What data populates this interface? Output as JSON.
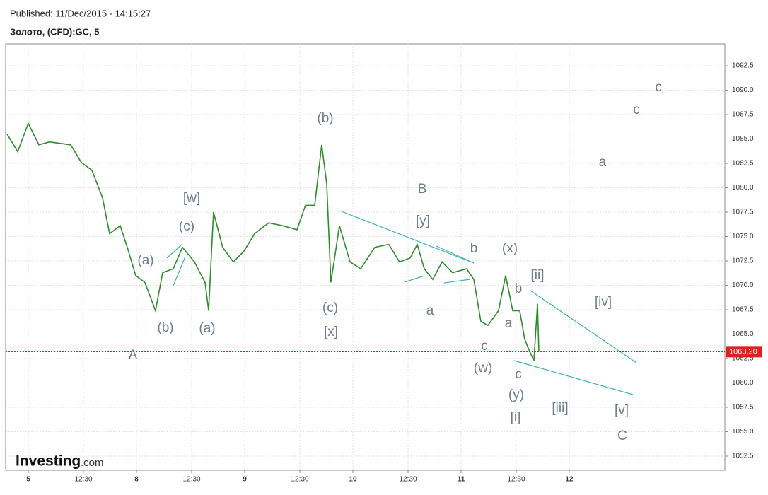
{
  "header": {
    "published": "Published: 11/Dec/2015 - 14:15:27",
    "instrument": "Золото, (CFD):GC, 5"
  },
  "logo": {
    "brand": "Investing",
    "suffix": ".com"
  },
  "chart_data": {
    "type": "line",
    "color": "#2e8b2e",
    "x": [
      -0.196,
      -0.098,
      0,
      0.098,
      0.196,
      0.392,
      0.49,
      0.588,
      0.686,
      0.752,
      0.85,
      0.915,
      0.993,
      1.078,
      1.176,
      1.242,
      1.34,
      1.425,
      1.536,
      1.634,
      1.667,
      1.712,
      1.797,
      1.895,
      1.993,
      2.092,
      2.222,
      2.353,
      2.484,
      2.562,
      2.647,
      2.712,
      2.758,
      2.797,
      2.876,
      2.974,
      3.072,
      3.203,
      3.333,
      3.431,
      3.529,
      3.595,
      3.66,
      3.739,
      3.824,
      3.922,
      4.052,
      4.118,
      4.183,
      4.248,
      4.346,
      4.412,
      4.477,
      4.542,
      4.588,
      4.627,
      4.673,
      4.706,
      4.719
    ],
    "values": [
      1085.5,
      1083.7,
      1086.6,
      1084.4,
      1084.7,
      1084.4,
      1082.6,
      1081.8,
      1079.0,
      1075.3,
      1076.1,
      1073.9,
      1071.0,
      1070.3,
      1067.4,
      1071.3,
      1071.7,
      1073.9,
      1072.4,
      1070.3,
      1067.4,
      1077.5,
      1073.9,
      1072.4,
      1073.5,
      1075.3,
      1076.4,
      1076.1,
      1075.7,
      1078.2,
      1078.2,
      1084.4,
      1080.4,
      1070.3,
      1076.1,
      1072.4,
      1071.7,
      1073.9,
      1074.2,
      1072.4,
      1072.8,
      1074.2,
      1071.7,
      1070.6,
      1072.4,
      1071.3,
      1071.7,
      1070.6,
      1066.3,
      1065.9,
      1067.4,
      1071.0,
      1067.4,
      1067.4,
      1064.5,
      1063.4,
      1062.3,
      1068.1,
      1063.2
    ],
    "xlim": [
      -0.209,
      6.438
    ],
    "ylim": [
      1051.05,
      1094.75
    ],
    "xticks": [
      {
        "value": 0,
        "label": "5"
      },
      {
        "value": 0.51,
        "label": "12:30"
      },
      {
        "value": 1,
        "label": "8"
      },
      {
        "value": 1.51,
        "label": "12:30"
      },
      {
        "value": 2,
        "label": "9"
      },
      {
        "value": 2.51,
        "label": "12:30"
      },
      {
        "value": 3,
        "label": "10"
      },
      {
        "value": 3.51,
        "label": "12:30"
      },
      {
        "value": 4,
        "label": "11"
      },
      {
        "value": 4.51,
        "label": "12:30"
      },
      {
        "value": 5,
        "label": "12"
      }
    ],
    "yticks": [
      1052.5,
      {
        "value": 1055,
        "label": "1055.0"
      },
      1057.5,
      {
        "value": 1060,
        "label": "1060.0"
      },
      1062.5,
      {
        "value": 1065,
        "label": "1065.0"
      },
      1067.5,
      {
        "value": 1070,
        "label": "1070.0"
      },
      1072.5,
      {
        "value": 1075,
        "label": "1075.0"
      },
      1077.5,
      {
        "value": 1080,
        "label": "1080.0"
      },
      1082.5,
      {
        "value": 1085,
        "label": "1085.0"
      },
      1087.5,
      {
        "value": 1090,
        "label": "1090.0"
      },
      1092.5
    ],
    "grid": true,
    "last_price": {
      "value": 1063.2,
      "label": "1063.20"
    },
    "annotations": [
      "(b)",
      "B",
      "[w]",
      "(c)",
      "(a)",
      "(b)",
      "(a)",
      "A",
      "(c)",
      "[x]",
      "[y]",
      "b",
      "(x)",
      "[ii]",
      "b",
      "a",
      "a",
      "c",
      "(w)",
      "c",
      "(y)",
      "[i]",
      "[iii]",
      "[v]",
      "C",
      "[iv]",
      "a",
      "c",
      "c"
    ]
  }
}
